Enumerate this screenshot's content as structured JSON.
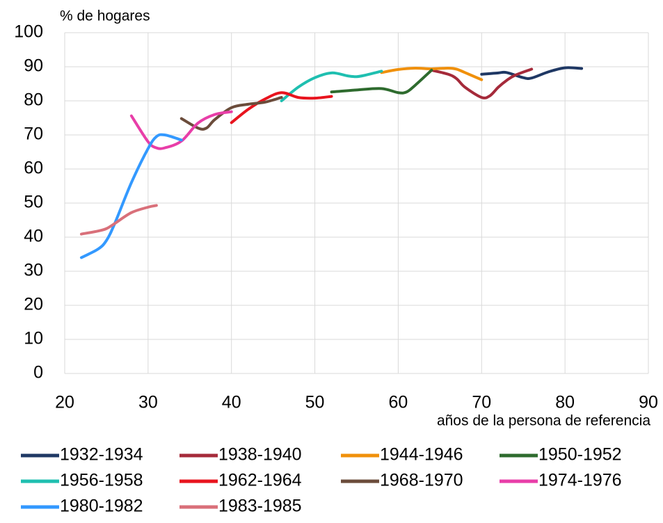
{
  "chart_data": {
    "type": "line",
    "title": "% de hogares",
    "x_label": "años de la persona de referencia",
    "xlim": [
      20,
      90
    ],
    "xticks": [
      20,
      30,
      40,
      50,
      60,
      70,
      80,
      90
    ],
    "ylim": [
      0,
      100
    ],
    "yticks": [
      0,
      10,
      20,
      30,
      40,
      50,
      60,
      70,
      80,
      90,
      100
    ],
    "grid": true,
    "legend": "bottom",
    "series": [
      {
        "name": "1932-1934",
        "color": "#1f3864",
        "x": [
          70,
          72,
          73,
          75,
          76,
          78,
          80,
          82
        ],
        "values": [
          87.8,
          88.2,
          88.3,
          86.8,
          86.7,
          88.5,
          89.7,
          89.5
        ]
      },
      {
        "name": "1938-1940",
        "color": "#a52a3a",
        "x": [
          64,
          66,
          67,
          68,
          70,
          71,
          72,
          73,
          74,
          76
        ],
        "values": [
          89,
          87.8,
          86.5,
          84,
          81,
          81.5,
          84,
          86,
          87.5,
          89.3
        ]
      },
      {
        "name": "1944-1946",
        "color": "#f0900a",
        "x": [
          58,
          60,
          62,
          64,
          66,
          67,
          68,
          70
        ],
        "values": [
          88.3,
          89.2,
          89.6,
          89.4,
          89.6,
          89.3,
          88.3,
          86.2
        ]
      },
      {
        "name": "1950-1952",
        "color": "#2e6b2e",
        "x": [
          52,
          55,
          58,
          60,
          61,
          62,
          64
        ],
        "values": [
          82.6,
          83.2,
          83.6,
          82.4,
          82.6,
          84.5,
          89
        ]
      },
      {
        "name": "1956-1958",
        "color": "#1fbfb0",
        "x": [
          46,
          48,
          50,
          52,
          54,
          55,
          56,
          58
        ],
        "values": [
          80,
          84,
          86.8,
          88.2,
          87.3,
          87.1,
          87.5,
          88.7
        ]
      },
      {
        "name": "1962-1964",
        "color": "#e8141e",
        "x": [
          40,
          42,
          44,
          46,
          48,
          50,
          52
        ],
        "values": [
          73.6,
          77.5,
          80.5,
          82.4,
          81,
          80.8,
          81.3
        ]
      },
      {
        "name": "1968-1970",
        "color": "#6b4c3b",
        "x": [
          34,
          36,
          37,
          38,
          40,
          42,
          44,
          46
        ],
        "values": [
          74.8,
          72,
          72,
          74.5,
          78,
          79,
          79.6,
          81
        ]
      },
      {
        "name": "1974-1976",
        "color": "#e83ea8",
        "x": [
          28,
          30,
          31,
          32,
          34,
          36,
          38,
          40
        ],
        "values": [
          75.6,
          68,
          66.2,
          66.2,
          68.2,
          73.5,
          76,
          76.8
        ]
      },
      {
        "name": "1980-1982",
        "color": "#3399ff",
        "x": [
          22,
          24,
          25,
          26,
          28,
          30,
          31,
          32,
          34
        ],
        "values": [
          34,
          36.5,
          39,
          44,
          56,
          66,
          69.5,
          70,
          68.5
        ]
      },
      {
        "name": "1983-1985",
        "color": "#d9707a",
        "x": [
          22,
          24,
          25,
          26,
          28,
          30,
          31
        ],
        "values": [
          40.9,
          41.8,
          42.5,
          44,
          47.2,
          48.8,
          49.3
        ]
      }
    ]
  }
}
